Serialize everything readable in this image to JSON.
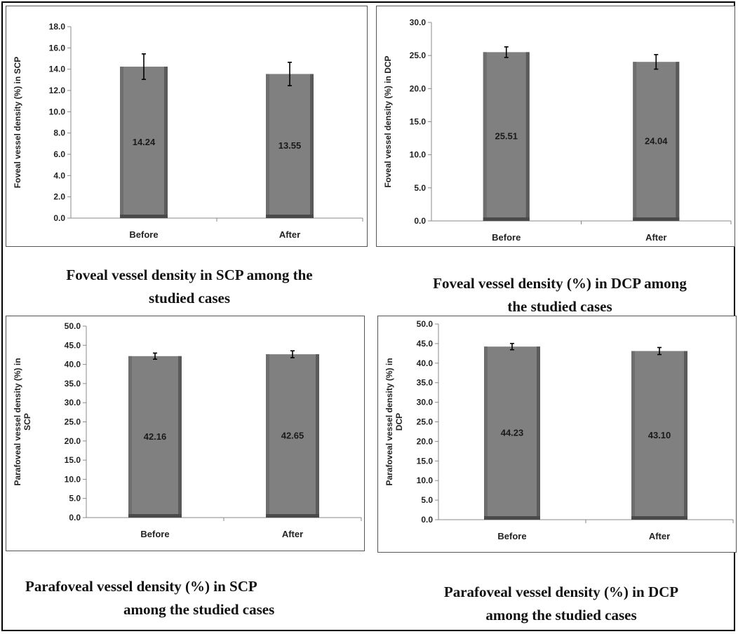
{
  "chart_data": [
    {
      "type": "bar",
      "title": "",
      "categories": [
        "Before",
        "After"
      ],
      "values": [
        14.24,
        13.55
      ],
      "value_labels": [
        "14.24",
        "13.55"
      ],
      "errors": [
        1.2,
        1.1
      ],
      "ylabel": "Foveal vessel density (%) in SCP",
      "xlabel": "",
      "ylim": [
        0,
        18
      ],
      "yticks": [
        "0.0",
        "2.0",
        "4.0",
        "6.0",
        "8.0",
        "10.0",
        "12.0",
        "14.0",
        "16.0",
        "18.0"
      ],
      "grid": false,
      "bar_color": "#808080"
    },
    {
      "type": "bar",
      "title": "",
      "categories": [
        "Before",
        "After"
      ],
      "values": [
        25.51,
        24.04
      ],
      "value_labels": [
        "25.51",
        "24.04"
      ],
      "errors": [
        0.8,
        1.1
      ],
      "ylabel": "Foveal vessel density (%) in DCP",
      "xlabel": "",
      "ylim": [
        0,
        30
      ],
      "yticks": [
        "0.0",
        "5.0",
        "10.0",
        "15.0",
        "20.0",
        "25.0",
        "30.0"
      ],
      "grid": false,
      "bar_color": "#808080"
    },
    {
      "type": "bar",
      "title": "",
      "categories": [
        "Before",
        "After"
      ],
      "values": [
        42.16,
        42.65
      ],
      "value_labels": [
        "42.16",
        "42.65"
      ],
      "errors": [
        0.8,
        0.9
      ],
      "ylabel": [
        "Parafoveal vessel density (%) in",
        "SCP"
      ],
      "xlabel": "",
      "ylim": [
        0,
        50
      ],
      "yticks": [
        "0.0",
        "5.0",
        "10.0",
        "15.0",
        "20.0",
        "25.0",
        "30.0",
        "35.0",
        "40.0",
        "45.0",
        "50.0"
      ],
      "grid": false,
      "bar_color": "#808080"
    },
    {
      "type": "bar",
      "title": "",
      "categories": [
        "Before",
        "After"
      ],
      "values": [
        44.23,
        43.1
      ],
      "value_labels": [
        "44.23",
        "43.10"
      ],
      "errors": [
        0.8,
        0.9
      ],
      "ylabel": [
        "Parafoveal vessel density (%) in",
        "DCP"
      ],
      "xlabel": "",
      "ylim": [
        0,
        50
      ],
      "yticks": [
        "0.0",
        "5.0",
        "10.0",
        "15.0",
        "20.0",
        "25.0",
        "30.0",
        "35.0",
        "40.0",
        "45.0",
        "50.0"
      ],
      "grid": false,
      "bar_color": "#808080"
    }
  ],
  "captions": {
    "c1": [
      "Foveal vessel density in SCP among the",
      "studied cases"
    ],
    "c2": [
      "Foveal vessel density (%) in DCP among",
      "the studied cases"
    ],
    "c3": [
      "Parafoveal vessel density (%) in SCP",
      "among the studied cases"
    ],
    "c4": [
      "Parafoveal vessel density (%) in DCP",
      "among the studied cases"
    ]
  }
}
